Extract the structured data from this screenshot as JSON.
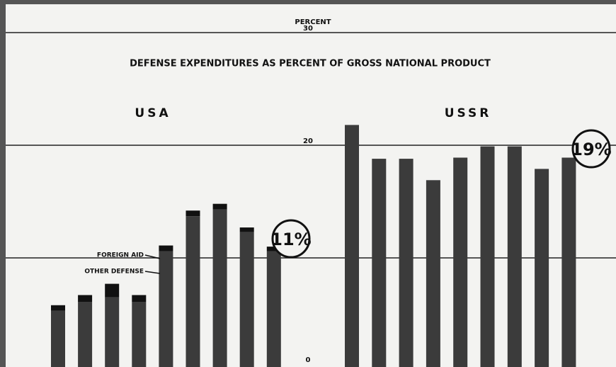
{
  "chart_data": {
    "type": "stacked_bar",
    "title": "DEFENSE EXPENDITURES AS PERCENT OF GROSS NATIONAL PRODUCT",
    "ylabel": "PERCENT",
    "ylim": [
      0,
      30
    ],
    "yticks": [
      0,
      20,
      30
    ],
    "gridlines": [
      10,
      20,
      30
    ],
    "panels": [
      {
        "name": "USA",
        "annotation": "11%",
        "series": [
          {
            "name": "OTHER DEFENSE",
            "color": "#3b3b3b",
            "values": [
              5.3,
              6.1,
              6.5,
              6.1,
              10.6,
              13.7,
              14.3,
              12.3,
              10.6
            ]
          },
          {
            "name": "FOREIGN AID",
            "color": "#111111",
            "values": [
              0.5,
              0.6,
              1.2,
              0.6,
              0.5,
              0.5,
              0.5,
              0.4,
              0.4
            ]
          }
        ]
      },
      {
        "name": "USSR",
        "annotation": "19%",
        "series": [
          {
            "color": "#3b3b3b",
            "values": [
              21.8,
              18.8,
              18.8,
              16.9,
              18.9,
              19.9,
              19.9,
              17.9,
              18.9
            ]
          }
        ]
      }
    ]
  }
}
